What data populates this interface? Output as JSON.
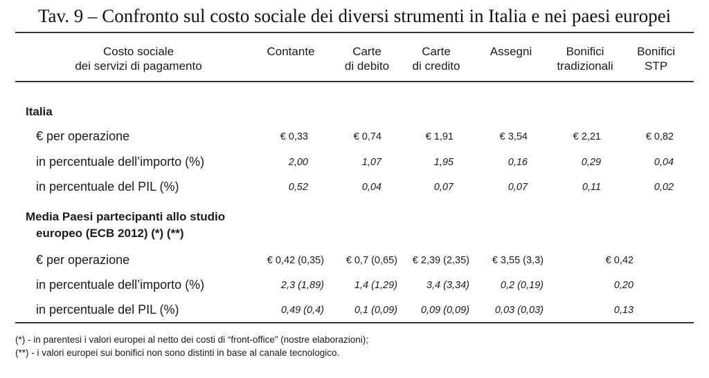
{
  "title": "Tav. 9 – Confronto sul costo sociale dei diversi strumenti in Italia e nei paesi europei",
  "header": {
    "label": [
      "Costo sociale",
      "dei servizi di pagamento"
    ],
    "columns": [
      [
        "Contante"
      ],
      [
        "Carte",
        "di debito"
      ],
      [
        "Carte",
        "di credito"
      ],
      [
        "Assegni"
      ],
      [
        "Bonifici",
        "tradizionali"
      ],
      [
        "Bonifici",
        "STP"
      ]
    ]
  },
  "sections": {
    "italia": {
      "title": "Italia",
      "rows": [
        {
          "label": "€ per operazione",
          "values": [
            "€ 0,33",
            "€ 0,74",
            "€ 1,91",
            "€ 3,54",
            "€ 2,21",
            "€ 0,82"
          ]
        },
        {
          "label": "in percentuale dell’importo (%)",
          "values": [
            "2,00",
            "1,07",
            "1,95",
            "0,16",
            "0,29",
            "0,04"
          ]
        },
        {
          "label": "in percentuale del PIL (%)",
          "values": [
            "0,52",
            "0,04",
            "0,07",
            "0,07",
            "0,11",
            "0,02"
          ]
        }
      ]
    },
    "europa": {
      "title_line1": "Media Paesi partecipanti allo studio",
      "title_line2": "europeo (ECB 2012) (*) (**)",
      "rows": [
        {
          "label": "€ per operazione",
          "values": [
            "€ 0,42 (0,35)",
            "€ 0,7 (0,65)",
            "€ 2,39 (2,35)",
            "€ 3,55 (3,3)",
            "€ 0,42"
          ]
        },
        {
          "label": "in percentuale dell’importo (%)",
          "values": [
            "2,3 (1,89)",
            "1,4 (1,29)",
            "3,4 (3,34)",
            "0,2 (0,19)",
            "0,20"
          ]
        },
        {
          "label": "in percentuale del PIL (%)",
          "values": [
            "0,49 (0,4)",
            "0,1 (0,09)",
            "0,09 (0,09)",
            "0,03 (0,03)",
            "0,13"
          ]
        }
      ]
    }
  },
  "notes": [
    "(*) - in parentesi i valori europei al netto dei costi di “front-office” (nostre elaborazioni);",
    "(**) - i valori europei sui bonifici non sono distinti in base al canale tecnologico."
  ]
}
